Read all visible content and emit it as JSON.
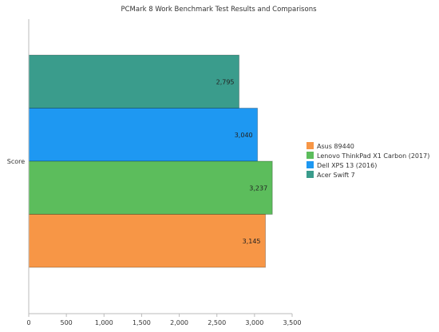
{
  "chart_data": {
    "type": "bar",
    "orientation": "horizontal",
    "title": "PCMark 8 Work Benchmark Test Results and Comparisons",
    "categories": [
      "Score"
    ],
    "series": [
      {
        "name": "Asus 89440",
        "values": [
          3145
        ],
        "label": "3,145",
        "color": "#F79646"
      },
      {
        "name": "Lenovo ThinkPad X1 Carbon (2017)",
        "values": [
          3237
        ],
        "label": "3,237",
        "color": "#5CBD5C"
      },
      {
        "name": "Dell XPS 13 (2016)",
        "values": [
          3040
        ],
        "label": "3,040",
        "color": "#1E98F2"
      },
      {
        "name": "Acer Swift 7",
        "values": [
          2795
        ],
        "label": "2,795",
        "color": "#3A9C8C"
      }
    ],
    "xlim": [
      0,
      3500
    ],
    "xticks": [
      0,
      500,
      1000,
      1500,
      2000,
      2500,
      3000,
      3500
    ],
    "xtick_labels": [
      "0",
      "500",
      "1,000",
      "1,500",
      "2,000",
      "2,500",
      "3,000",
      "3,500"
    ],
    "xlabel": "",
    "ylabel": "",
    "grid": false,
    "legend_position": "right"
  }
}
